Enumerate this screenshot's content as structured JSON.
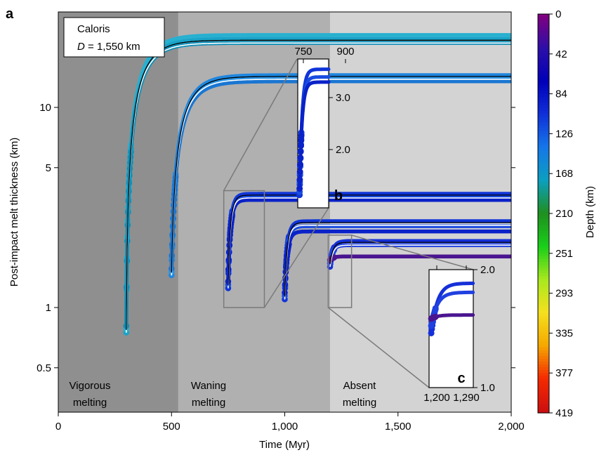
{
  "chart_data": {
    "type": "scatter",
    "panel_label": "a",
    "inset_b_label": "b",
    "inset_c_label": "c",
    "xlabel": "Time (Myr)",
    "ylabel": "Post-impact melt thickness (km)",
    "xlim": [
      0,
      2000
    ],
    "ylim": [
      0.3,
      30
    ],
    "y_scale": "log",
    "x_ticks": [
      0,
      500,
      1000,
      1500,
      2000
    ],
    "x_tick_labels": [
      "0",
      "500",
      "1,000",
      "1,500",
      "2,000"
    ],
    "y_ticks": [
      0.5,
      1,
      5,
      10
    ],
    "y_tick_labels": [
      "0.5",
      "1",
      "5",
      "10"
    ],
    "annotation": {
      "name": "Caloris",
      "d_symbol": "D",
      "d_value": " = 1,550 km"
    },
    "regimes": [
      {
        "label_line1": "Vigorous",
        "label_line2": "melting",
        "x_start": 0,
        "x_end": 530,
        "color": "#8f8f8f"
      },
      {
        "label_line1": "Waning",
        "label_line2": "melting",
        "x_start": 530,
        "x_end": 1200,
        "color": "#b0b0b0"
      },
      {
        "label_line1": "Absent",
        "label_line2": "melting",
        "x_start": 1200,
        "x_end": 2000,
        "color": "#d3d3d3"
      }
    ],
    "colorbar": {
      "label": "Depth (km)",
      "ticks": [
        "0",
        "42",
        "84",
        "126",
        "168",
        "210",
        "251",
        "293",
        "335",
        "377",
        "419"
      ],
      "colors": [
        "#800080",
        "#2c0fa8",
        "#0000b8",
        "#1030d8",
        "#1577e8",
        "#0c9fbf",
        "#1f8f1f",
        "#19cf19",
        "#a8e81e",
        "#f5e01e",
        "#f5a800",
        "#f52a00",
        "#cc1010"
      ]
    },
    "series": [
      {
        "t0": 300,
        "start": 0.75,
        "final": [
          22,
          23,
          21
        ],
        "colors": [
          "#1aa3c8",
          "#28b0d0",
          "#0f8fb8"
        ]
      },
      {
        "t0": 500,
        "start": 1.45,
        "final": [
          14.5,
          14.0,
          13.5
        ],
        "colors": [
          "#1f86de",
          "#2a95e6",
          "#1a76d2"
        ]
      },
      {
        "t0": 750,
        "start": 1.25,
        "final": [
          3.7,
          3.55,
          3.45
        ],
        "colors": [
          "#1035d8",
          "#1a4ce0",
          "#0a22c8"
        ]
      },
      {
        "t0": 1000,
        "start": 1.1,
        "final": [
          2.7,
          2.55,
          2.4
        ],
        "colors": [
          "#1035d8",
          "#1a4ce0",
          "#0a22c8"
        ]
      },
      {
        "t0": 1200,
        "start": 1.6,
        "final": [
          2.15,
          2.05,
          1.8
        ],
        "colors": [
          "#1530d8",
          "#2040e0",
          "#4a1590"
        ]
      }
    ],
    "inset_b": {
      "x_tick_labels": [
        "750",
        "900"
      ],
      "y_tick_labels": [
        "3.0",
        "2.0"
      ],
      "y_ticks": [
        3.0,
        2.0
      ],
      "window": {
        "x": [
          740,
          910
        ],
        "y": [
          1.0,
          3.9
        ]
      }
    },
    "inset_c": {
      "x_tick_labels": [
        "1,200",
        "1,290"
      ],
      "y_tick_labels": [
        "2.0",
        "1.0"
      ],
      "y_ticks": [
        2.0,
        1.0
      ],
      "window": {
        "x": [
          1195,
          1295
        ],
        "y": [
          1.0,
          2.3
        ]
      }
    }
  }
}
